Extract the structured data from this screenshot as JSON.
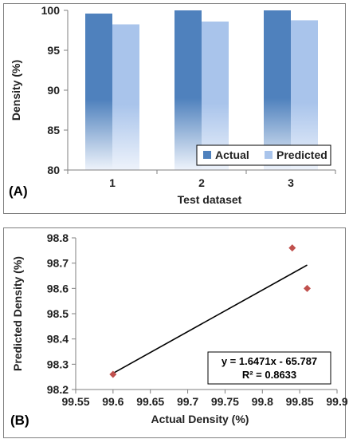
{
  "chart_data": [
    {
      "type": "bar",
      "panel_label": "(A)",
      "categories": [
        "1",
        "2",
        "3"
      ],
      "series": [
        {
          "name": "Actual",
          "color": "#4F81BD",
          "values": [
            99.6,
            100.0,
            100.0
          ]
        },
        {
          "name": "Predicted",
          "color": "#A9C4EB",
          "values": [
            98.25,
            98.6,
            98.76
          ]
        }
      ],
      "xlabel": "Test dataset",
      "ylabel": "Density (%)",
      "ylim": [
        80,
        100
      ],
      "yticks": [
        "80",
        "85",
        "90",
        "95",
        "100"
      ],
      "legend": "bottom-right",
      "bar_gradient": "fades to lighter at bottom",
      "grid": false
    },
    {
      "type": "scatter",
      "panel_label": "(B)",
      "x": [
        99.6,
        99.84,
        99.86
      ],
      "y": [
        98.26,
        98.76,
        98.6
      ],
      "marker": "diamond",
      "marker_color": "#C0504D",
      "xlabel": "Actual Density (%)",
      "ylabel": "Predicted Density (%)",
      "xlim": [
        99.55,
        99.9
      ],
      "ylim": [
        98.2,
        98.8
      ],
      "xticks": [
        "99.55",
        "99.6",
        "99.65",
        "99.7",
        "99.75",
        "99.8",
        "99.85",
        "99.9"
      ],
      "yticks": [
        "98.2",
        "98.3",
        "98.4",
        "98.5",
        "98.6",
        "98.7",
        "98.8"
      ],
      "trendline": {
        "slope": 1.6471,
        "intercept": -65.787,
        "x_range": [
          99.6,
          99.86
        ],
        "color": "#000000"
      },
      "annotation": {
        "equation": "y = 1.6471x - 65.787",
        "r2": "R² = 0.8633"
      },
      "grid": false
    }
  ]
}
